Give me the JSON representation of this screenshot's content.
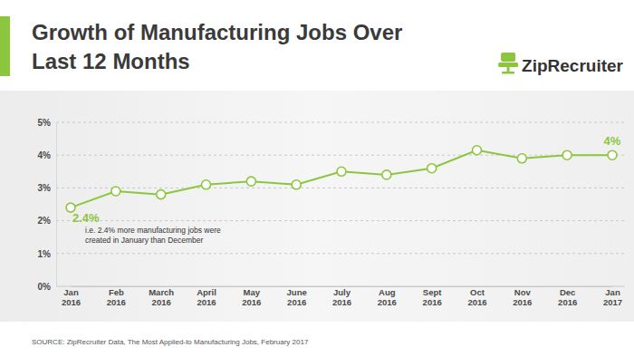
{
  "chart_data": {
    "type": "line",
    "title": "Growth of Manufacturing Jobs Over Last 12 Months",
    "logo": "ZipRecruiter",
    "categories": [
      "Jan 2016",
      "Feb 2016",
      "March 2016",
      "April 2016",
      "May 2016",
      "June 2016",
      "July 2016",
      "Aug 2016",
      "Sept 2016",
      "Oct 2016",
      "Nov 2016",
      "Dec 2016",
      "Jan 2017"
    ],
    "values": [
      2.4,
      2.9,
      2.8,
      3.1,
      3.2,
      3.1,
      3.5,
      3.4,
      3.6,
      4.15,
      3.9,
      4,
      4
    ],
    "value_labels": [
      "2.4%",
      null,
      null,
      null,
      null,
      null,
      null,
      null,
      null,
      null,
      null,
      null,
      "4%"
    ],
    "data_labels": true,
    "annotation": "i.e. 2.4% more manufacturing jobs were created in January than December",
    "source": "SOURCE: ZipRecruiter Data, The Most Applied-to Manufacturing Jobs, February 2017",
    "color": "#8cc63f",
    "marker": "circle",
    "ylim": [
      0,
      5
    ],
    "yticks": [
      {
        "value": 0,
        "label": "0%"
      },
      {
        "value": 1,
        "label": "1%"
      },
      {
        "value": 2,
        "label": "2%"
      },
      {
        "value": 3,
        "label": "3%"
      },
      {
        "value": 4,
        "label": "4%"
      },
      {
        "value": 5,
        "label": "5%"
      }
    ],
    "grid": true
  }
}
